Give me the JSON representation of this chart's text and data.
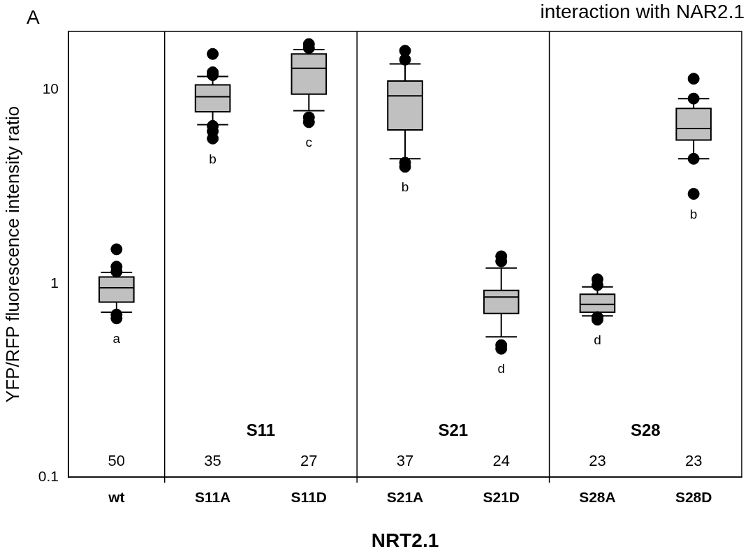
{
  "chart_data": {
    "type": "box",
    "title": "interaction with NAR2.1",
    "xlabel": "NRT2.1",
    "ylabel": "YFP/RFP fluorescence intensity ratio",
    "log": true,
    "categories": [
      "wt",
      "S11A",
      "S11D",
      "S21A",
      "S21D",
      "S28A",
      "S28D"
    ],
    "series": [
      {
        "color": "#c0c0c0",
        "boxes": [
          {
            "low": 0.71,
            "q1": 0.8,
            "median": 0.95,
            "q3": 1.08,
            "high": 1.14,
            "outliers": [
              1.5,
              1.22,
              1.15,
              0.69,
              0.66
            ]
          },
          {
            "low": 6.6,
            "q1": 7.7,
            "median": 9.2,
            "q3": 10.6,
            "high": 11.7,
            "outliers": [
              15.3,
              12.3,
              11.9,
              6.5,
              6.1,
              5.6
            ]
          },
          {
            "low": 7.8,
            "q1": 9.5,
            "median": 12.9,
            "q3": 15.3,
            "high": 16.1,
            "outliers": [
              17.2,
              16.4,
              7.2,
              6.8
            ]
          },
          {
            "low": 4.4,
            "q1": 6.2,
            "median": 9.3,
            "q3": 11.1,
            "high": 13.6,
            "outliers": [
              15.9,
              14.3,
              4.2,
              4.0
            ]
          },
          {
            "low": 0.53,
            "q1": 0.7,
            "median": 0.85,
            "q3": 0.92,
            "high": 1.2,
            "outliers": [
              1.38,
              1.3,
              0.48,
              0.46
            ]
          },
          {
            "low": 0.68,
            "q1": 0.71,
            "median": 0.78,
            "q3": 0.88,
            "high": 0.96,
            "outliers": [
              1.05,
              0.98,
              0.67,
              0.65
            ]
          },
          {
            "low": 4.4,
            "q1": 5.5,
            "median": 6.3,
            "q3": 8.0,
            "high": 9.0,
            "outliers": [
              11.4,
              9.0,
              4.4,
              2.9
            ]
          }
        ]
      }
    ],
    "ylim": [
      0.1,
      20
    ],
    "yticks": [
      0.1,
      1,
      10
    ],
    "annotations": [
      "A",
      "a",
      "b",
      "c",
      "b",
      "d",
      "d",
      "b",
      "S11",
      "S21",
      "S28",
      "50",
      "35",
      "27",
      "37",
      "24",
      "23",
      "23"
    ]
  }
}
